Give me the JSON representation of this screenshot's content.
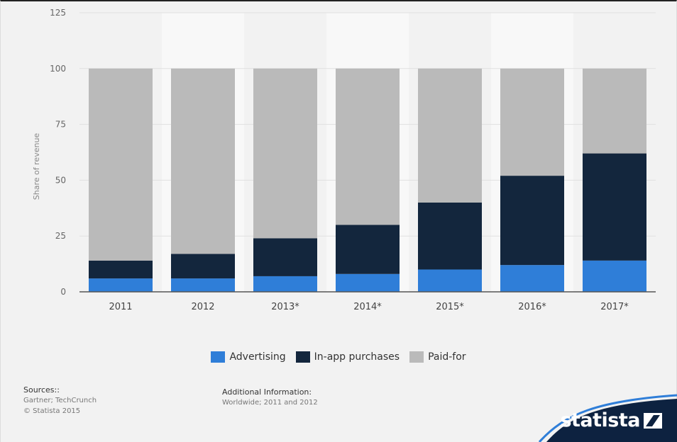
{
  "chart_data": {
    "type": "bar",
    "stacked": true,
    "categories": [
      "2011",
      "2012",
      "2013*",
      "2014*",
      "2015*",
      "2016*",
      "2017*"
    ],
    "series": [
      {
        "name": "Advertising",
        "color": "#2f7ed8",
        "values": [
          6,
          6,
          7,
          8,
          10,
          12,
          14
        ]
      },
      {
        "name": "In-app purchases",
        "color": "#13263d",
        "values": [
          8,
          11,
          17,
          22,
          30,
          40,
          48
        ]
      },
      {
        "name": "Paid-for",
        "color": "#bababa",
        "values": [
          86,
          83,
          76,
          70,
          60,
          48,
          38
        ]
      }
    ],
    "ylabel": "Share of revenue",
    "xlabel": "",
    "ylim": [
      0,
      125
    ],
    "yticks": [
      "0",
      "25",
      "50",
      "75",
      "100",
      "125"
    ],
    "grid": true,
    "legend": "bottom"
  },
  "legend": {
    "items": [
      {
        "label": "Advertising",
        "color": "#2f7ed8"
      },
      {
        "label": "In-app purchases",
        "color": "#13263d"
      },
      {
        "label": "Paid-for",
        "color": "#bababa"
      }
    ]
  },
  "footer": {
    "sources_title": "Sources::",
    "sources_line1": "Gartner; TechCrunch",
    "sources_line2": "© Statista 2015",
    "addinfo_title": "Additional Information:",
    "addinfo_line1": "Worldwide; 2011 and 2012",
    "brand": "statista",
    "brand_bg": "#0d2240"
  }
}
